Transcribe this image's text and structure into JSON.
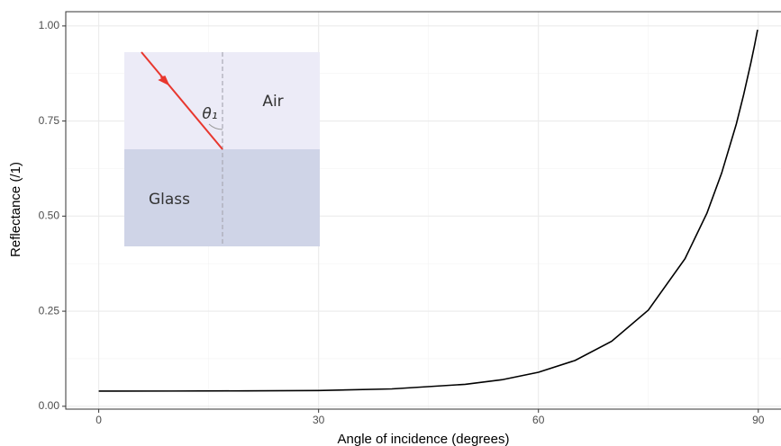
{
  "chart_data": {
    "type": "line",
    "x_label": "Angle of incidence (degrees)",
    "y_label": "Reflectance (/1)",
    "annotations": [
      "Air",
      "Glass",
      "θ₁"
    ],
    "x": [
      0,
      10,
      20,
      30,
      40,
      50,
      55,
      60,
      65,
      70,
      75,
      80,
      83,
      85,
      87,
      88,
      89,
      89.5,
      89.9
    ],
    "values": [
      0.04,
      0.0401,
      0.0405,
      0.0415,
      0.0457,
      0.0577,
      0.0697,
      0.0894,
      0.1205,
      0.171,
      0.253,
      0.388,
      0.508,
      0.613,
      0.742,
      0.819,
      0.904,
      0.95,
      0.99
    ],
    "color": "#000000",
    "xlim": [
      -4.5,
      93.1
    ],
    "ylim": [
      -0.0075,
      1.0375
    ],
    "xticks": [
      0,
      30,
      60,
      90
    ],
    "yticks": [
      {
        "value": 0,
        "label": "0.00"
      },
      {
        "value": 0.25,
        "label": "0.25"
      },
      {
        "value": 0.5,
        "label": "0.50"
      },
      {
        "value": 0.75,
        "label": "0.75"
      },
      {
        "value": 1,
        "label": "1.00"
      }
    ],
    "minor_xticks": [
      15,
      45,
      75
    ],
    "minor_yticks": [
      0.125,
      0.375,
      0.625,
      0.875
    ],
    "grid": true
  }
}
